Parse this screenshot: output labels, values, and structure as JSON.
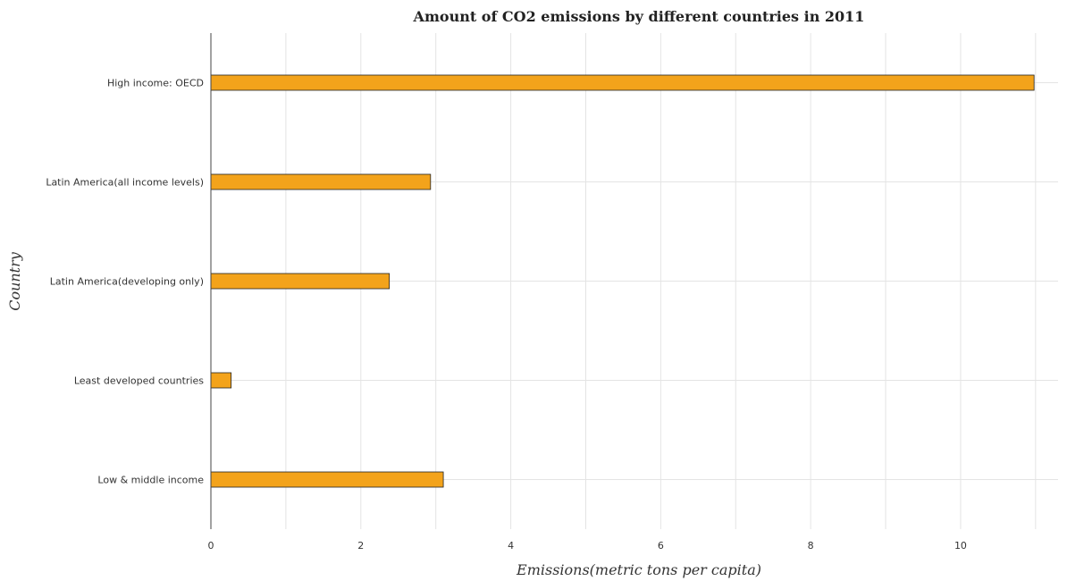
{
  "chart_data": {
    "type": "bar",
    "orientation": "horizontal",
    "title": "Amount of CO2 emissions by different countries in 2011",
    "xlabel": "Emissions(metric tons per capita)",
    "ylabel": "Country",
    "categories": [
      "High income: OECD",
      "Latin America(all income levels)",
      "Latin America(developing only)",
      "Least developed countries",
      "Low & middle income"
    ],
    "values": [
      10.98,
      2.93,
      2.38,
      0.27,
      3.1
    ],
    "xlim": [
      0,
      11.3
    ],
    "xticks": [
      0,
      2,
      4,
      6,
      8,
      10
    ],
    "xtick_labels": [
      "0",
      "2",
      "4",
      "6",
      "8",
      "10"
    ],
    "grid": true,
    "bar_color": "#f3a31b"
  }
}
